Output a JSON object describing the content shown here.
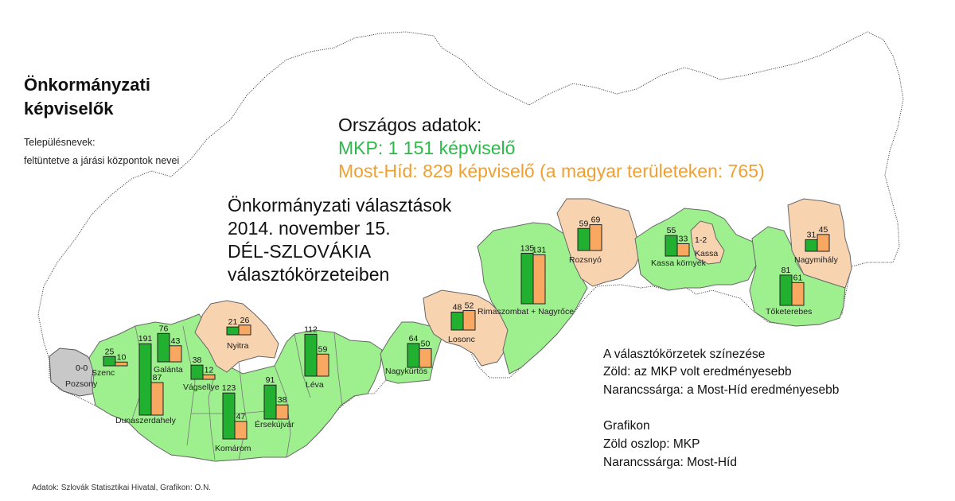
{
  "title_line1": "Önkormányzati",
  "title_line2": "képviselők",
  "settlement_note_line1": "Településnevek:",
  "settlement_note_line2": "feltüntetve a járási központok nevei",
  "national": {
    "heading": "Országos adatok:",
    "mkp": "MKP: 1 151 képviselő",
    "mosthid": "Most-Híd: 829 képviselő (a magyar területeken: 765)"
  },
  "election": {
    "line1": "Önkormányzati választások",
    "line2": "2014. november 15.",
    "line3": "DÉL-SZLOVÁKIA",
    "line4": "választókörzeteiben"
  },
  "legend": {
    "coloring_title": "A választókörzetek színezése",
    "coloring_green": "Zöld: az MKP volt eredményesebb",
    "coloring_orange": "Narancssárga: a Most-Híd eredményesebb",
    "chart_title": "Grafikon",
    "chart_green": "Zöld oszlop: MKP",
    "chart_orange": "Narancssárga: Most-Híd"
  },
  "source": "Adatok: Szlovák Statisztikai Hivatal, Grafikon: O.N.",
  "colors": {
    "mkp": "#22b030",
    "mosthid": "#f8a860",
    "region_green": "#9ef08e",
    "region_orange": "#f8d3b0",
    "region_gray": "#c8c8c8"
  },
  "districts": [
    {
      "name": "Pozsony",
      "mkp": null,
      "mosthid": null,
      "value_text": "0-0",
      "winner": "none"
    },
    {
      "name": "Szenc",
      "mkp": 25,
      "mosthid": 10,
      "winner": "mkp"
    },
    {
      "name": "Dunaszerdahely",
      "mkp": 191,
      "mosthid": 87,
      "winner": "mkp"
    },
    {
      "name": "Galánta",
      "mkp": 76,
      "mosthid": 43,
      "winner": "mkp"
    },
    {
      "name": "Vágsellye",
      "mkp": 38,
      "mosthid": 12,
      "winner": "mkp"
    },
    {
      "name": "Nyitra",
      "mkp": 21,
      "mosthid": 26,
      "winner": "mosthid"
    },
    {
      "name": "Komárom",
      "mkp": 123,
      "mosthid": 47,
      "winner": "mkp"
    },
    {
      "name": "Érsekújvár",
      "mkp": 91,
      "mosthid": 38,
      "winner": "mkp"
    },
    {
      "name": "Léva",
      "mkp": 112,
      "mosthid": 59,
      "winner": "mkp"
    },
    {
      "name": "Nagykürtös",
      "mkp": 64,
      "mosthid": 50,
      "winner": "mkp"
    },
    {
      "name": "Losonc",
      "mkp": 48,
      "mosthid": 52,
      "winner": "mosthid"
    },
    {
      "name": "Rimaszombat + Nagyrőce",
      "mkp": 135,
      "mosthid": 131,
      "winner": "mkp"
    },
    {
      "name": "Rozsnyó",
      "mkp": 59,
      "mosthid": 69,
      "winner": "mosthid"
    },
    {
      "name": "Kassa környék",
      "mkp": 55,
      "mosthid": 33,
      "winner": "mkp"
    },
    {
      "name": "Kassa",
      "mkp": null,
      "mosthid": null,
      "value_text": "1-2",
      "winner": "mosthid"
    },
    {
      "name": "Nagymihály",
      "mkp": 31,
      "mosthid": 45,
      "winner": "mosthid"
    },
    {
      "name": "Tőketerebes",
      "mkp": 81,
      "mosthid": 61,
      "winner": "mkp"
    }
  ]
}
